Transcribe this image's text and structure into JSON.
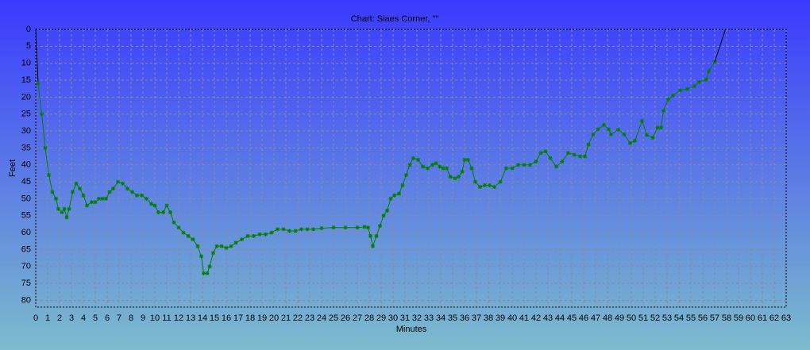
{
  "chart_data": {
    "type": "line",
    "title": "Chart: Siaes Corner, \"\"",
    "xlabel": "Minutes",
    "ylabel": "Feet",
    "xlim": [
      0,
      63
    ],
    "ylim": [
      0,
      82
    ],
    "y_inverted": true,
    "grid": true,
    "xticks": [
      0,
      1,
      2,
      3,
      4,
      5,
      6,
      7,
      8,
      9,
      10,
      11,
      12,
      13,
      14,
      15,
      16,
      17,
      18,
      19,
      20,
      21,
      22,
      23,
      24,
      25,
      26,
      27,
      28,
      29,
      30,
      31,
      32,
      33,
      34,
      35,
      36,
      37,
      38,
      39,
      40,
      41,
      42,
      43,
      44,
      45,
      46,
      47,
      48,
      49,
      50,
      51,
      52,
      53,
      54,
      55,
      56,
      57,
      58,
      59,
      60,
      61,
      62,
      63
    ],
    "yticks": [
      0,
      5,
      10,
      15,
      20,
      25,
      30,
      35,
      40,
      45,
      50,
      55,
      60,
      65,
      70,
      75,
      80
    ],
    "series": [
      {
        "color": "#000000",
        "markers": false,
        "x": [
          0,
          0.2
        ],
        "values": [
          0,
          16
        ]
      },
      {
        "color": "#008000",
        "markers": true,
        "x": [
          0.2,
          0.5,
          0.8,
          1.1,
          1.4,
          1.7,
          1.9,
          2.2,
          2.4,
          2.6,
          2.8,
          3.1,
          3.4,
          3.7,
          4,
          4.3,
          4.7,
          5,
          5.3,
          5.6,
          5.9,
          6.2,
          6.5,
          6.9,
          7.3,
          7.7,
          8.1,
          8.5,
          8.9,
          9.3,
          9.7,
          10,
          10.3,
          10.7,
          11,
          11.3,
          11.6,
          12,
          12.4,
          12.8,
          13.2,
          13.6,
          13.9,
          14.1,
          14.4,
          14.6,
          14.9,
          15.2,
          15.6,
          16,
          16.4,
          16.8,
          17.3,
          17.8,
          18.3,
          18.8,
          19.3,
          19.8,
          20.3,
          20.8,
          21.3,
          21.8,
          22.3,
          22.8,
          23.3,
          24,
          25,
          26,
          27,
          27.6,
          27.9,
          28.1,
          28.3,
          28.6,
          28.9,
          29.2,
          29.5,
          29.8,
          30.1,
          30.5,
          30.8,
          31.1,
          31.4,
          31.7,
          32.1,
          32.5,
          32.9,
          33.3,
          33.6,
          33.9,
          34.2,
          34.5,
          34.8,
          35.2,
          35.5,
          35.8,
          36,
          36.3,
          36.6,
          36.9,
          37.3,
          37.7,
          38.1,
          38.5,
          39,
          39.5,
          40,
          40.5,
          41,
          41.5,
          42,
          42.4,
          42.8,
          43.2,
          43.7,
          44.2,
          44.7,
          45.2,
          45.7,
          46.1,
          46.4,
          46.8,
          47.2,
          47.7,
          48.1,
          48.3,
          48.9,
          49.4,
          49.9,
          50.3,
          50.9,
          51.3,
          51.8,
          52.2,
          52.5,
          52.7,
          53.1,
          53.5,
          54.1,
          54.7,
          55.3,
          55.7,
          56.3,
          56.5,
          57
        ],
        "values": [
          16,
          25,
          35,
          43,
          48,
          50,
          53,
          54,
          53,
          55.5,
          53,
          48,
          45.5,
          47,
          49,
          52,
          51,
          51,
          50,
          50,
          50,
          48,
          47,
          45,
          45.5,
          47,
          48,
          49,
          49,
          50,
          51.5,
          52,
          54,
          54,
          52,
          54,
          57,
          58.5,
          60,
          61,
          62,
          64,
          67,
          72,
          72,
          70,
          66,
          64,
          64,
          64.5,
          64,
          63,
          62,
          61,
          61,
          60.5,
          60.5,
          60,
          59,
          59,
          59.5,
          59.5,
          59,
          59,
          59,
          58.7,
          58.5,
          58.5,
          58.5,
          58.3,
          58.5,
          61,
          64,
          61,
          58,
          55,
          53.5,
          50,
          49,
          48.5,
          46,
          43,
          40,
          38,
          38.5,
          40.5,
          41,
          40,
          39.5,
          40.5,
          41,
          41,
          43.5,
          44,
          43.5,
          42,
          38.5,
          38.5,
          41,
          45,
          46.5,
          46,
          46,
          46.5,
          45,
          41,
          41,
          40,
          40,
          40,
          39,
          36.5,
          36,
          38,
          40.5,
          39,
          36.5,
          37,
          37.5,
          37.5,
          34,
          31,
          29.5,
          28.2,
          29.5,
          31,
          29.6,
          31,
          33.6,
          32.9,
          27,
          31.2,
          32,
          29,
          29,
          24,
          20.7,
          19.5,
          18,
          17.6,
          16.7,
          15.5,
          14.8,
          12.4,
          9.6
        ]
      },
      {
        "color": "#000000",
        "markers": false,
        "x": [
          57,
          57.9
        ],
        "values": [
          9.6,
          0
        ]
      }
    ]
  }
}
